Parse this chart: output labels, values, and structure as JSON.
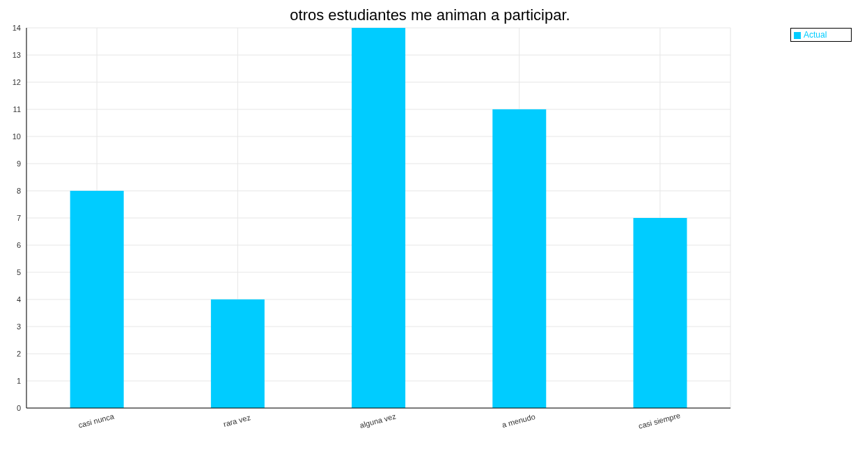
{
  "chart_data": {
    "type": "bar",
    "title": "otros estudiantes me animan a participar.",
    "categories": [
      "casi nunca",
      "rara vez",
      "alguna vez",
      "a menudo",
      "casi siempre"
    ],
    "series": [
      {
        "name": "Actual",
        "color": "#00ccff",
        "values": [
          8,
          4,
          14,
          11,
          7
        ]
      }
    ],
    "ylim": [
      0,
      14
    ],
    "yticks": [
      0,
      1,
      2,
      3,
      4,
      5,
      6,
      7,
      8,
      9,
      10,
      11,
      12,
      13,
      14
    ],
    "grid": true,
    "legend": "top right"
  }
}
